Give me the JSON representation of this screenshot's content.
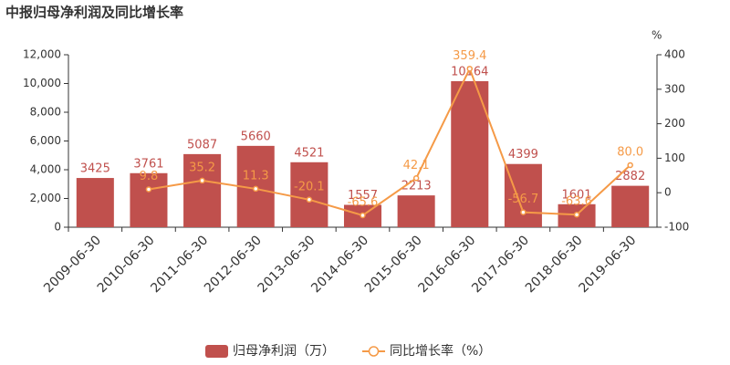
{
  "chart_data": {
    "type": "bar_line",
    "title": "中报归母净利润及同比增长率",
    "y2_unit": "%",
    "categories": [
      "2009-06-30",
      "2010-06-30",
      "2011-06-30",
      "2012-06-30",
      "2013-06-30",
      "2014-06-30",
      "2015-06-30",
      "2016-06-30",
      "2017-06-30",
      "2018-06-30",
      "2019-06-30"
    ],
    "series": [
      {
        "name": "归母净利润（万）",
        "color": "#c0504d",
        "type": "bar",
        "values": [
          3425,
          3761,
          5087,
          5660,
          4521,
          1557,
          2213,
          10164,
          4399,
          1601,
          2882
        ]
      },
      {
        "name": "同比增长率（%）",
        "color": "#f59a47",
        "type": "line",
        "axis": "y2",
        "values": [
          null,
          9.8,
          35.2,
          11.3,
          -20.1,
          -65.6,
          42.1,
          359.4,
          -56.7,
          -63.6,
          80
        ],
        "value_labels": [
          null,
          "9.8",
          "35.2",
          "11.3",
          "-20.1",
          "-65.6",
          "42.1",
          "359.4",
          "-56.7",
          "-63.6",
          "80.0"
        ]
      }
    ],
    "ylim": [
      0,
      12000
    ],
    "yticks": [
      0,
      {
        "value": 2000,
        "label": "2,000"
      },
      {
        "value": 4000,
        "label": "4,000"
      },
      {
        "value": 6000,
        "label": "6,000"
      },
      {
        "value": 8000,
        "label": "8,000"
      },
      {
        "value": 10000,
        "label": "10,000"
      },
      {
        "value": 12000,
        "label": "12,000"
      }
    ],
    "y2lim": [
      -100,
      400
    ],
    "y2ticks": [
      -100,
      0,
      100,
      200,
      300,
      400
    ],
    "grid": false,
    "legend": "bottom"
  }
}
